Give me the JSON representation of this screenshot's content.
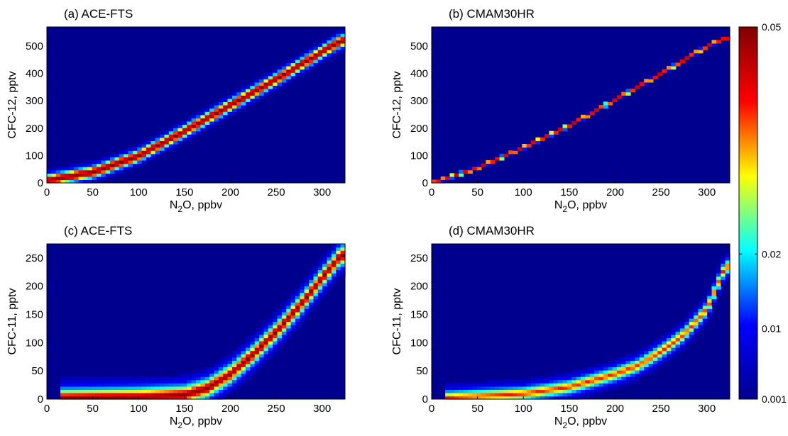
{
  "figure": {
    "colorbar": {
      "ticks": [
        {
          "value": 0.05,
          "label": "0.05"
        },
        {
          "value": 0.02,
          "label": "0.02"
        },
        {
          "value": 0.01,
          "label": "0.01"
        },
        {
          "value": 0.001,
          "label": "0.001"
        }
      ],
      "colormap": "jet",
      "colors": [
        "#00008f",
        "#0000ff",
        "#00ffff",
        "#ffff00",
        "#ff0000",
        "#800000"
      ]
    }
  },
  "chart_data": [
    {
      "type": "heatmap",
      "title": "(a) ACE-FTS",
      "xlabel_main": "N",
      "xlabel_sub": "2",
      "xlabel_rest": "O, ppbv",
      "ylabel": "CFC-12, pptv",
      "xlim": [
        0,
        325
      ],
      "ylim": [
        0,
        570
      ],
      "xticks": [
        0,
        50,
        100,
        150,
        200,
        250,
        300
      ],
      "yticks": [
        0,
        100,
        200,
        300,
        400,
        500
      ],
      "background_color": "#00008f",
      "ridge": [
        [
          0,
          10
        ],
        [
          50,
          40
        ],
        [
          100,
          100
        ],
        [
          150,
          190
        ],
        [
          200,
          285
        ],
        [
          250,
          380
        ],
        [
          300,
          480
        ],
        [
          320,
          520
        ]
      ],
      "core_width": 12,
      "outer_width": 50,
      "peak": 0.05
    },
    {
      "type": "heatmap",
      "title": "(b) CMAM30HR",
      "xlabel_main": "N",
      "xlabel_sub": "2",
      "xlabel_rest": "O, ppbv",
      "ylabel": "CFC-12, pptv",
      "xlim": [
        0,
        325
      ],
      "ylim": [
        0,
        570
      ],
      "xticks": [
        0,
        50,
        100,
        150,
        200,
        250,
        300
      ],
      "yticks": [
        0,
        100,
        200,
        300,
        400,
        500
      ],
      "background_color": "#00008f",
      "ridge": [
        [
          0,
          0
        ],
        [
          50,
          55
        ],
        [
          100,
          130
        ],
        [
          150,
          210
        ],
        [
          200,
          305
        ],
        [
          250,
          400
        ],
        [
          300,
          500
        ],
        [
          320,
          530
        ]
      ],
      "core_width": 5,
      "outer_width": 10,
      "peak": 0.045
    },
    {
      "type": "heatmap",
      "title": "(c) ACE-FTS",
      "xlabel_main": "N",
      "xlabel_sub": "2",
      "xlabel_rest": "O, ppbv",
      "ylabel": "CFC-11, pptv",
      "xlim": [
        0,
        325
      ],
      "ylim": [
        0,
        275
      ],
      "xticks": [
        0,
        50,
        100,
        150,
        200,
        250,
        300
      ],
      "yticks": [
        0,
        50,
        100,
        150,
        200,
        250
      ],
      "background_color": "#00008f",
      "ridge": [
        [
          20,
          2
        ],
        [
          100,
          4
        ],
        [
          150,
          8
        ],
        [
          175,
          20
        ],
        [
          200,
          45
        ],
        [
          225,
          80
        ],
        [
          250,
          120
        ],
        [
          275,
          165
        ],
        [
          300,
          215
        ],
        [
          320,
          255
        ]
      ],
      "core_width": 7,
      "outer_width": 45,
      "peak": 0.05
    },
    {
      "type": "heatmap",
      "title": "(d) CMAM30HR",
      "xlabel_main": "N",
      "xlabel_sub": "2",
      "xlabel_rest": "O, ppbv",
      "ylabel": "CFC-11, pptv",
      "xlim": [
        0,
        325
      ],
      "ylim": [
        0,
        275
      ],
      "xticks": [
        0,
        50,
        100,
        150,
        200,
        250,
        300
      ],
      "yticks": [
        0,
        50,
        100,
        150,
        200,
        250
      ],
      "background_color": "#00008f",
      "ridge": [
        [
          20,
          3
        ],
        [
          100,
          10
        ],
        [
          150,
          22
        ],
        [
          200,
          45
        ],
        [
          225,
          60
        ],
        [
          250,
          85
        ],
        [
          275,
          115
        ],
        [
          300,
          160
        ],
        [
          320,
          235
        ]
      ],
      "core_width": 5,
      "outer_width": 35,
      "peak": 0.04
    }
  ]
}
